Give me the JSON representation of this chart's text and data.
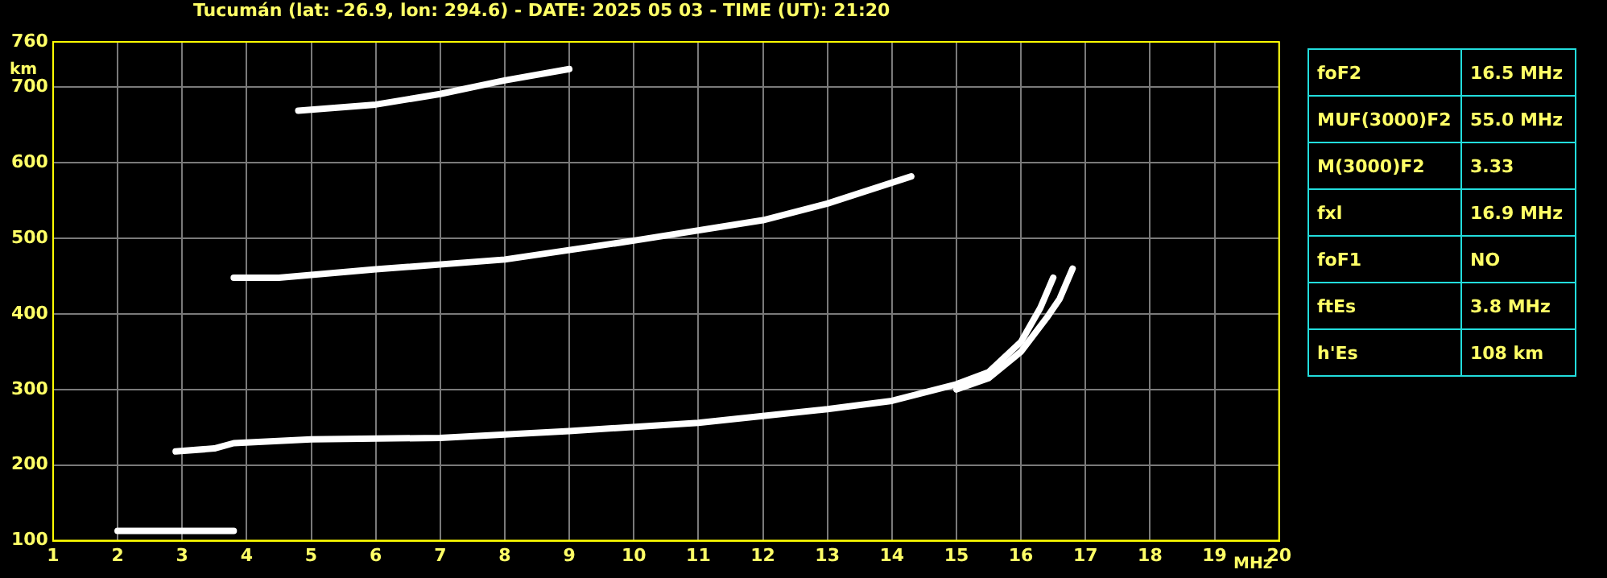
{
  "chart_data": {
    "type": "line",
    "title": "Tucumán (lat: -26.9, lon: 294.6) - DATE: 2025 05 03 - TIME (UT): 21:20",
    "xlabel": "MHz",
    "ylabel": "km",
    "xlim": [
      1,
      20
    ],
    "xticks": [
      1,
      2,
      3,
      4,
      5,
      6,
      7,
      8,
      9,
      10,
      11,
      12,
      13,
      14,
      15,
      16,
      17,
      18,
      19,
      20
    ],
    "ylim": [
      100,
      760
    ],
    "yticks": [
      100,
      200,
      300,
      400,
      500,
      600,
      700,
      760
    ],
    "grid": true,
    "marker": "none",
    "line_style": "solid",
    "series": [
      {
        "color": "#ffffff",
        "x": [
          2.0,
          2.5,
          3.0,
          3.5,
          3.8
        ],
        "values": [
          113,
          113,
          113,
          113,
          113
        ]
      },
      {
        "color": "#ffffff",
        "x": [
          2.9,
          3.5,
          3.8,
          5,
          7,
          9,
          11,
          13,
          14,
          15,
          15.5,
          16,
          16.3,
          16.5
        ],
        "values": [
          218,
          222,
          229,
          234,
          236,
          245,
          256,
          274,
          285,
          307,
          323,
          363,
          408,
          448
        ]
      },
      {
        "color": "#ffffff",
        "x": [
          15,
          15.5,
          16,
          16.4,
          16.6,
          16.8
        ],
        "values": [
          300,
          315,
          350,
          395,
          420,
          460
        ]
      },
      {
        "color": "#ffffff",
        "x": [
          3.8,
          4.5,
          6,
          8,
          10,
          12,
          13,
          14.3
        ],
        "values": [
          448,
          448,
          459,
          472,
          497,
          524,
          546,
          582
        ]
      },
      {
        "color": "#ffffff",
        "x": [
          4.8,
          6,
          7,
          8,
          9
        ],
        "values": [
          669,
          677,
          691,
          709,
          724
        ]
      }
    ],
    "annotations": [
      "foF2",
      "16.5 MHz",
      "MUF(3000)F2",
      "55.0 MHz",
      "M(3000)F2",
      "3.33",
      "fxl",
      "16.9 MHz",
      "foF1",
      "NO",
      "ftEs",
      "3.8 MHz",
      "h'Es",
      "108 km"
    ]
  }
}
